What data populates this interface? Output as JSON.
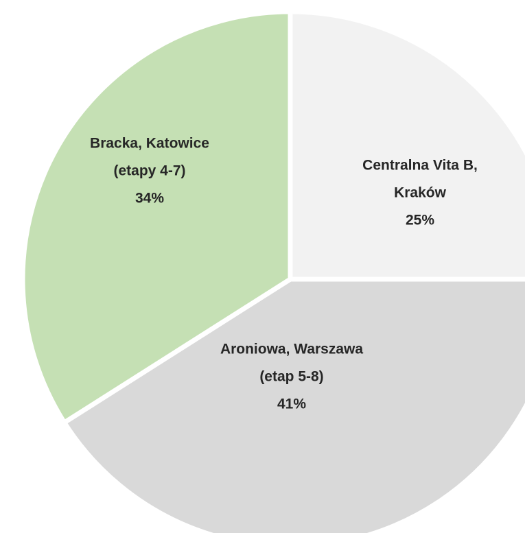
{
  "chart_data": {
    "type": "pie",
    "categories": [
      [
        "Centralna Vita B,",
        "Kraków"
      ],
      [
        "Aroniowa, Warszawa",
        "(etap 5-8)"
      ],
      [
        "Bracka, Katowice",
        "(etapy 4-7)"
      ]
    ],
    "values": [
      25,
      41,
      34
    ],
    "value_labels": [
      "25%",
      "41%",
      "34%"
    ],
    "colors": [
      "#f2f2f2",
      "#d9d9d9",
      "#c5e0b4"
    ],
    "start_angle": 0,
    "direction": "clockwise"
  }
}
